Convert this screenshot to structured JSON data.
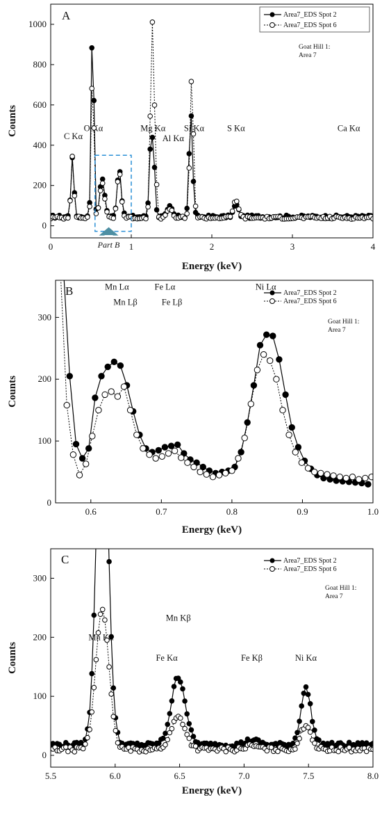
{
  "colors": {
    "spot2": "#000000",
    "spot6": "#000000",
    "part_b_box": "#2a8fd6",
    "part_b_arrow": "#4e8fa3"
  },
  "chart_data": [
    {
      "type": "line",
      "panel_label": "A",
      "xlabel": "Energy (keV)",
      "ylabel": "Counts",
      "xlim": [
        0,
        4
      ],
      "ylim": [
        -60,
        1100
      ],
      "xticks": [
        "0",
        "1",
        "2",
        "3",
        "4"
      ],
      "yticks": [
        "0",
        "200",
        "400",
        "600",
        "800",
        "1000"
      ],
      "legend": [
        "Area7_EDS Spot 2",
        "Area7_EDS Spot 6"
      ],
      "legend_placement": "top-right",
      "note": [
        "Goat Hill 1:",
        "Area 7"
      ],
      "inset_label": "Part B",
      "inset_range": [
        0.55,
        1.0
      ],
      "annotations": [
        {
          "text": "C Kα",
          "x": 0.28,
          "y": 430
        },
        {
          "text": "O Kα",
          "x": 0.53,
          "y": 470
        },
        {
          "text": "Mg Kα",
          "x": 1.27,
          "y": 470
        },
        {
          "text": "Al Kα",
          "x": 1.52,
          "y": 420
        },
        {
          "text": "Si Kα",
          "x": 1.78,
          "y": 470
        },
        {
          "text": "S Kα",
          "x": 2.3,
          "y": 470
        },
        {
          "text": "Ca Kα",
          "x": 3.7,
          "y": 470
        }
      ],
      "series": [
        {
          "name": "Area7_EDS Spot 2",
          "marker": "filled",
          "peaks": [
            [
              0.27,
              300,
              0.018
            ],
            [
              0.52,
              1020,
              0.016
            ],
            [
              0.64,
              190,
              0.03
            ],
            [
              0.85,
              240,
              0.025
            ],
            [
              1.25,
              430,
              0.022
            ],
            [
              1.29,
              150,
              0.015
            ],
            [
              1.48,
              50,
              0.03
            ],
            [
              1.74,
              510,
              0.022
            ],
            [
              2.3,
              60,
              0.03
            ]
          ],
          "baseline": 45,
          "x_start": 0.0,
          "x_end": 4.0
        },
        {
          "name": "Area7_EDS Spot 6",
          "marker": "open",
          "peaks": [
            [
              0.27,
              310,
              0.018
            ],
            [
              0.52,
              780,
              0.016
            ],
            [
              0.64,
              170,
              0.03
            ],
            [
              0.85,
              230,
              0.025
            ],
            [
              1.26,
              960,
              0.022
            ],
            [
              1.3,
              200,
              0.015
            ],
            [
              1.48,
              45,
              0.03
            ],
            [
              1.75,
              690,
              0.022
            ],
            [
              2.3,
              90,
              0.03
            ]
          ],
          "baseline": 40,
          "x_start": 0.0,
          "x_end": 4.0
        }
      ]
    },
    {
      "type": "line",
      "panel_label": "B",
      "xlabel": "Energy (keV)",
      "ylabel": "Counts",
      "xlim": [
        0.55,
        1.0
      ],
      "ylim": [
        0,
        360
      ],
      "xticks": [
        "0.6",
        "0.7",
        "0.8",
        "0.9",
        "1.0"
      ],
      "yticks": [
        "0",
        "100",
        "200",
        "300"
      ],
      "legend": [
        "Area7_EDS Spot 2",
        "Area7_EDS Spot 6"
      ],
      "legend_placement": "top-right",
      "note": [
        "Goat Hill 1:",
        "Area 7"
      ],
      "annotations": [
        {
          "text": "Mn Lα",
          "x": 0.637,
          "y": 345
        },
        {
          "text": "Mn Lβ",
          "x": 0.649,
          "y": 320
        },
        {
          "text": "Fe Lα",
          "x": 0.705,
          "y": 345
        },
        {
          "text": "Fe Lβ",
          "x": 0.715,
          "y": 320
        },
        {
          "text": "Ni Lα",
          "x": 0.848,
          "y": 345
        }
      ],
      "series": [
        {
          "name": "Area7_EDS Spot 2",
          "marker": "filled",
          "x": [
            0.57,
            0.579,
            0.588,
            0.597,
            0.606,
            0.615,
            0.624,
            0.633,
            0.642,
            0.651,
            0.66,
            0.669,
            0.678,
            0.687,
            0.696,
            0.705,
            0.714,
            0.723,
            0.732,
            0.741,
            0.75,
            0.759,
            0.768,
            0.777,
            0.786,
            0.795,
            0.804,
            0.813,
            0.822,
            0.831,
            0.84,
            0.849,
            0.858,
            0.867,
            0.876,
            0.885,
            0.894,
            0.903,
            0.912,
            0.921,
            0.93,
            0.939,
            0.948,
            0.957,
            0.966,
            0.975,
            0.984,
            0.993
          ],
          "y": [
            205,
            95,
            72,
            88,
            170,
            205,
            220,
            228,
            222,
            190,
            148,
            110,
            88,
            82,
            85,
            90,
            92,
            94,
            80,
            70,
            65,
            58,
            52,
            48,
            50,
            52,
            58,
            82,
            130,
            190,
            255,
            272,
            270,
            232,
            175,
            122,
            90,
            68,
            55,
            45,
            40,
            38,
            36,
            35,
            34,
            33,
            32,
            30
          ],
          "x_start": 0.555,
          "y_start": 500
        },
        {
          "name": "Area7_EDS Spot 6",
          "marker": "open",
          "x": [
            0.566,
            0.575,
            0.584,
            0.593,
            0.602,
            0.611,
            0.62,
            0.629,
            0.638,
            0.647,
            0.656,
            0.665,
            0.674,
            0.683,
            0.692,
            0.701,
            0.71,
            0.719,
            0.728,
            0.737,
            0.746,
            0.755,
            0.764,
            0.773,
            0.782,
            0.791,
            0.8,
            0.809,
            0.818,
            0.827,
            0.836,
            0.845,
            0.854,
            0.863,
            0.872,
            0.881,
            0.89,
            0.899,
            0.908,
            0.917,
            0.926,
            0.935,
            0.944,
            0.953,
            0.962,
            0.971,
            0.98,
            0.989,
            0.998
          ],
          "y": [
            158,
            78,
            45,
            63,
            108,
            150,
            175,
            180,
            172,
            188,
            150,
            110,
            88,
            78,
            72,
            75,
            80,
            84,
            73,
            65,
            58,
            50,
            46,
            42,
            45,
            48,
            52,
            72,
            105,
            160,
            215,
            240,
            230,
            200,
            150,
            110,
            82,
            65,
            56,
            50,
            48,
            46,
            44,
            42,
            40,
            42,
            38,
            40,
            42
          ],
          "x_start": 0.555,
          "y_start": 420
        }
      ]
    },
    {
      "type": "line",
      "panel_label": "C",
      "xlabel": "Energy (keV)",
      "ylabel": "Counts",
      "xlim": [
        5.5,
        8.0
      ],
      "ylim": [
        -20,
        350
      ],
      "xticks": [
        "5.5",
        "6.0",
        "6.5",
        "7.0",
        "7.5",
        "8.0"
      ],
      "yticks": [
        "0",
        "100",
        "200",
        "300"
      ],
      "legend": [
        "Area7_EDS Spot 2",
        "Area7_EDS Spot 6"
      ],
      "legend_placement": "top-right",
      "note": [
        "Goat Hill 1:",
        "Area 7"
      ],
      "annotations": [
        {
          "text": "Mn Kα",
          "x": 5.89,
          "y": 195
        },
        {
          "text": "Mn Kβ",
          "x": 6.49,
          "y": 228
        },
        {
          "text": "Fe Kα",
          "x": 6.4,
          "y": 160
        },
        {
          "text": "Fe Kβ",
          "x": 7.06,
          "y": 160
        },
        {
          "text": "Ni Kα",
          "x": 7.48,
          "y": 160
        }
      ],
      "series": [
        {
          "name": "Area7_EDS Spot 2",
          "marker": "filled",
          "peaks": [
            [
              5.9,
              620,
              0.045
            ],
            [
              6.49,
              115,
              0.055
            ],
            [
              7.06,
              8,
              0.05
            ],
            [
              7.48,
              95,
              0.04
            ]
          ],
          "baseline": 18,
          "x_start": 5.5,
          "x_end": 8.0
        },
        {
          "name": "Area7_EDS Spot 6",
          "marker": "open",
          "peaks": [
            [
              5.9,
              240,
              0.05
            ],
            [
              6.49,
              55,
              0.055
            ],
            [
              7.06,
              6,
              0.05
            ],
            [
              7.48,
              42,
              0.04
            ]
          ],
          "baseline": 10,
          "x_start": 5.5,
          "x_end": 8.0
        }
      ]
    }
  ]
}
